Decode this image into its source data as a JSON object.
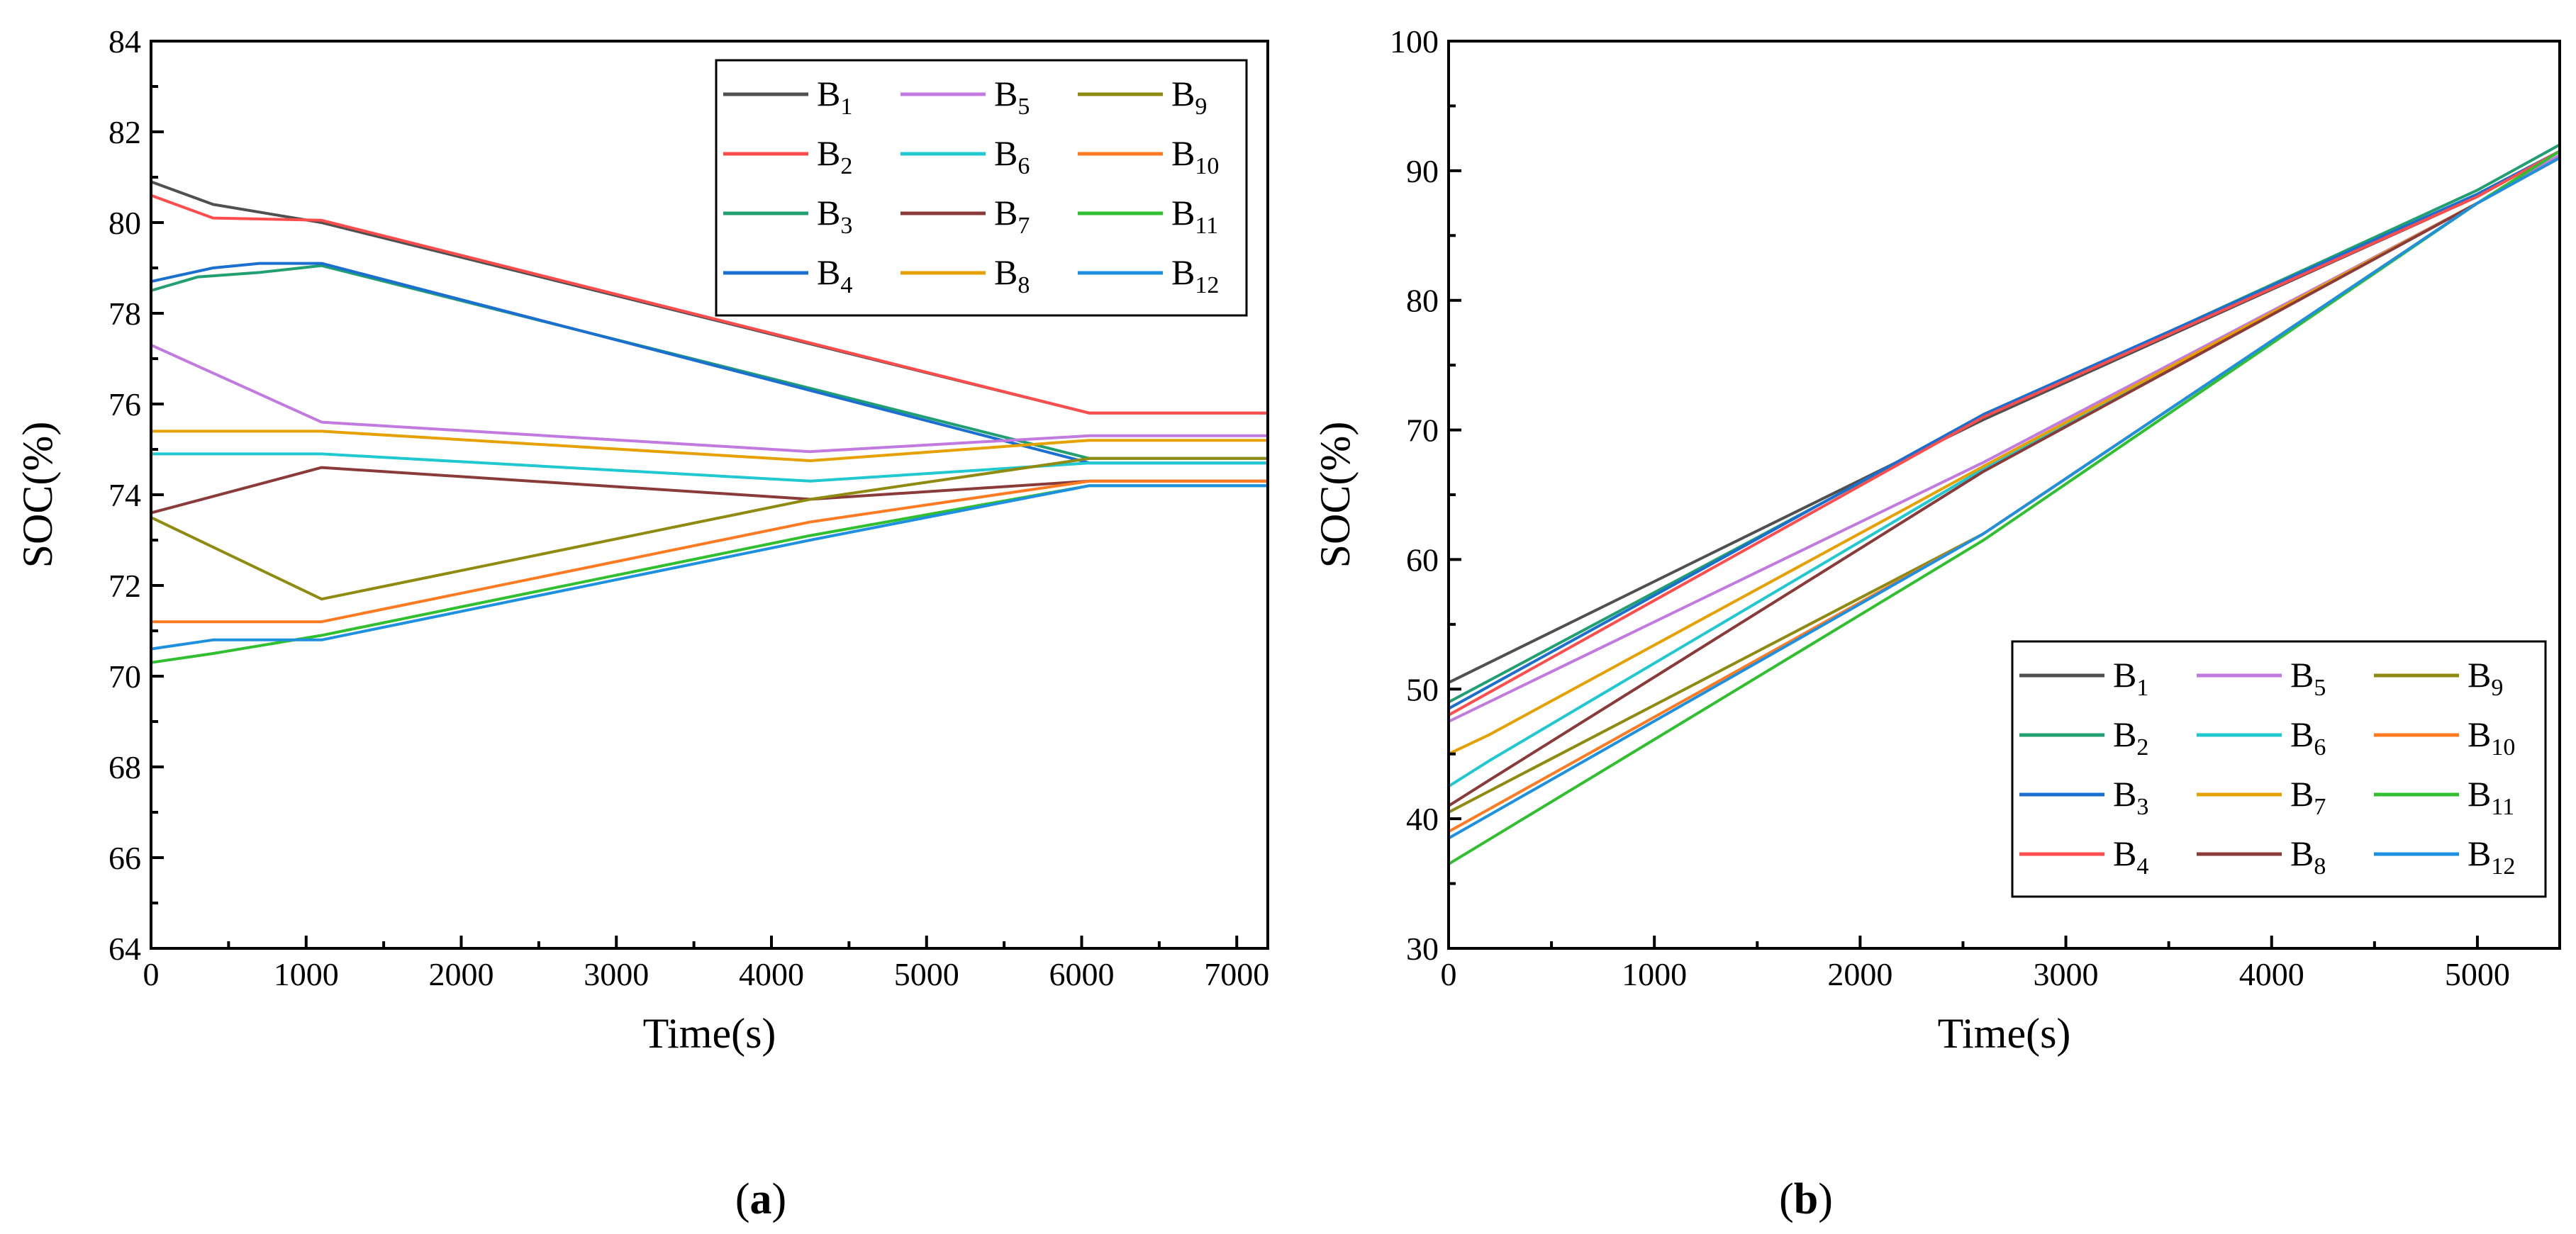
{
  "panel_labels": {
    "a_open": "(",
    "a_letter": "a",
    "a_close": ")",
    "b_open": "(",
    "b_letter": "b",
    "b_close": ")"
  },
  "chart_data": [
    {
      "type": "line",
      "panel": "a",
      "xlabel": "Time(s)",
      "ylabel": "SOC(%)",
      "xlim": [
        0,
        7200
      ],
      "ylim": [
        64,
        84
      ],
      "xticks": [
        0,
        1000,
        2000,
        3000,
        4000,
        5000,
        6000,
        7000
      ],
      "yticks": [
        64,
        66,
        68,
        70,
        72,
        74,
        76,
        78,
        80,
        82,
        84
      ],
      "grid": false,
      "legend_position": "top-right",
      "legend_columns": 3,
      "series": [
        {
          "name": "B",
          "sub": "1",
          "color": "#505050",
          "x": [
            0,
            400,
            1100,
            6050,
            7200
          ],
          "y": [
            80.9,
            80.4,
            80.0,
            75.8,
            75.8
          ]
        },
        {
          "name": "B",
          "sub": "2",
          "color": "#ff4d4d",
          "x": [
            0,
            400,
            1100,
            6050,
            7200
          ],
          "y": [
            80.6,
            80.1,
            80.05,
            75.8,
            75.8
          ]
        },
        {
          "name": "B",
          "sub": "3",
          "color": "#20a070",
          "x": [
            0,
            300,
            700,
            1100,
            6050,
            7200
          ],
          "y": [
            78.5,
            78.8,
            78.9,
            79.05,
            74.8,
            74.8
          ]
        },
        {
          "name": "B",
          "sub": "4",
          "color": "#1a6fd0",
          "x": [
            0,
            400,
            700,
            1100,
            6050,
            7200
          ],
          "y": [
            78.7,
            79.0,
            79.1,
            79.1,
            74.7,
            74.7
          ]
        },
        {
          "name": "B",
          "sub": "5",
          "color": "#c07ae0",
          "x": [
            0,
            1100,
            4250,
            6050,
            7200
          ],
          "y": [
            77.3,
            75.6,
            74.95,
            75.3,
            75.3
          ]
        },
        {
          "name": "B",
          "sub": "6",
          "color": "#20c8d0",
          "x": [
            0,
            1100,
            4250,
            6050,
            7200
          ],
          "y": [
            74.9,
            74.9,
            74.3,
            74.7,
            74.7
          ]
        },
        {
          "name": "B",
          "sub": "7",
          "color": "#8b3a3a",
          "x": [
            0,
            1100,
            4250,
            6050,
            7200
          ],
          "y": [
            73.6,
            74.6,
            73.9,
            74.3,
            74.3
          ]
        },
        {
          "name": "B",
          "sub": "8",
          "color": "#e6a000",
          "x": [
            0,
            1100,
            4250,
            6050,
            7200
          ],
          "y": [
            75.4,
            75.4,
            74.75,
            75.2,
            75.2
          ]
        },
        {
          "name": "B",
          "sub": "9",
          "color": "#8f8a10",
          "x": [
            0,
            1100,
            4250,
            6050,
            7200
          ],
          "y": [
            73.5,
            71.7,
            73.9,
            74.8,
            74.8
          ]
        },
        {
          "name": "B",
          "sub": "10",
          "color": "#ff7a20",
          "x": [
            0,
            1100,
            4250,
            6050,
            7200
          ],
          "y": [
            71.2,
            71.2,
            73.4,
            74.3,
            74.3
          ]
        },
        {
          "name": "B",
          "sub": "11",
          "color": "#2fbf2f",
          "x": [
            0,
            400,
            1100,
            4250,
            6050,
            7200
          ],
          "y": [
            70.3,
            70.5,
            70.9,
            73.1,
            74.2,
            74.2
          ]
        },
        {
          "name": "B",
          "sub": "12",
          "color": "#1e90e0",
          "x": [
            0,
            400,
            1100,
            4250,
            6050,
            7200
          ],
          "y": [
            70.6,
            70.8,
            70.8,
            73.0,
            74.2,
            74.2
          ]
        }
      ]
    },
    {
      "type": "line",
      "panel": "b",
      "xlabel": "Time(s)",
      "ylabel": "SOC(%)",
      "xlim": [
        0,
        5400
      ],
      "ylim": [
        30,
        100
      ],
      "xticks": [
        0,
        1000,
        2000,
        3000,
        4000,
        5000
      ],
      "yticks": [
        30,
        40,
        50,
        60,
        70,
        80,
        90,
        100
      ],
      "grid": false,
      "legend_position": "bottom-right",
      "legend_columns": 3,
      "series": [
        {
          "name": "B",
          "sub": "1",
          "color": "#505050",
          "x": [
            0,
            2600,
            5000,
            5400
          ],
          "y": [
            50.5,
            70.8,
            88.0,
            91.5
          ]
        },
        {
          "name": "B",
          "sub": "2",
          "color": "#20a070",
          "x": [
            0,
            2600,
            5000,
            5400
          ],
          "y": [
            49.0,
            71.0,
            88.5,
            92.0
          ]
        },
        {
          "name": "B",
          "sub": "3",
          "color": "#1a6fd0",
          "x": [
            0,
            2600,
            5000,
            5400
          ],
          "y": [
            48.5,
            71.2,
            88.2,
            91.5
          ]
        },
        {
          "name": "B",
          "sub": "4",
          "color": "#ff4d4d",
          "x": [
            0,
            2600,
            5000,
            5400
          ],
          "y": [
            48.0,
            71.0,
            88.0,
            91.5
          ]
        },
        {
          "name": "B",
          "sub": "5",
          "color": "#c07ae0",
          "x": [
            0,
            2600,
            5000,
            5400
          ],
          "y": [
            47.5,
            67.5,
            87.5,
            91.2
          ]
        },
        {
          "name": "B",
          "sub": "6",
          "color": "#20c8d0",
          "x": [
            0,
            200,
            2600,
            5000,
            5400
          ],
          "y": [
            42.5,
            44.5,
            67.0,
            87.5,
            91.0
          ]
        },
        {
          "name": "B",
          "sub": "7",
          "color": "#e6a000",
          "x": [
            0,
            200,
            2600,
            5000,
            5400
          ],
          "y": [
            45.0,
            46.5,
            67.2,
            87.5,
            91.0
          ]
        },
        {
          "name": "B",
          "sub": "8",
          "color": "#8b3a3a",
          "x": [
            0,
            200,
            2600,
            5000,
            5400
          ],
          "y": [
            41.0,
            43.0,
            66.8,
            87.5,
            91.0
          ]
        },
        {
          "name": "B",
          "sub": "9",
          "color": "#8f8a10",
          "x": [
            0,
            2600,
            5000,
            5400
          ],
          "y": [
            40.5,
            62.0,
            87.5,
            91.0
          ]
        },
        {
          "name": "B",
          "sub": "10",
          "color": "#ff7a20",
          "x": [
            0,
            2600,
            5000,
            5400
          ],
          "y": [
            39.0,
            62.0,
            87.5,
            91.0
          ]
        },
        {
          "name": "B",
          "sub": "11",
          "color": "#2fbf2f",
          "x": [
            0,
            2600,
            5000,
            5400
          ],
          "y": [
            36.5,
            61.5,
            87.5,
            91.5
          ]
        },
        {
          "name": "B",
          "sub": "12",
          "color": "#1e90e0",
          "x": [
            0,
            2600,
            5000,
            5400
          ],
          "y": [
            38.5,
            62.0,
            87.5,
            91.0
          ]
        }
      ]
    }
  ]
}
